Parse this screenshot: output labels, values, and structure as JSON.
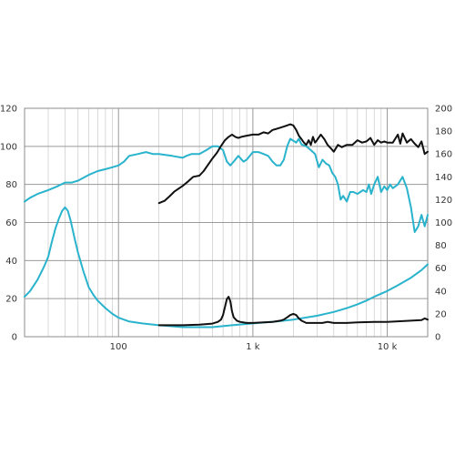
{
  "chart_data": {
    "type": "line",
    "x_scale": "log",
    "xlim": [
      20,
      20000
    ],
    "ylim_left": [
      0,
      120
    ],
    "ylim_right": [
      0,
      200
    ],
    "grid": true,
    "x_ticks": [
      {
        "value": 100,
        "label": "100"
      },
      {
        "value": 1000,
        "label": "1 k"
      },
      {
        "value": 10000,
        "label": "10 k"
      }
    ],
    "y_ticks_left": [
      {
        "value": 0,
        "label": "0"
      },
      {
        "value": 20,
        "label": "20"
      },
      {
        "value": 40,
        "label": "40"
      },
      {
        "value": 60,
        "label": "60"
      },
      {
        "value": 80,
        "label": "80"
      },
      {
        "value": 100,
        "label": "100"
      },
      {
        "value": 120,
        "label": "120"
      }
    ],
    "y_ticks_right": [
      {
        "value": 0,
        "label": "0"
      },
      {
        "value": 20,
        "label": "20"
      },
      {
        "value": 40,
        "label": "40"
      },
      {
        "value": 60,
        "label": "60"
      },
      {
        "value": 80,
        "label": "80"
      },
      {
        "value": 100,
        "label": "100"
      },
      {
        "value": 120,
        "label": "120"
      },
      {
        "value": 140,
        "label": "140"
      },
      {
        "value": 160,
        "label": "160"
      },
      {
        "value": 180,
        "label": "180"
      },
      {
        "value": 200,
        "label": "200"
      }
    ],
    "series": [
      {
        "color": "#29b3cc",
        "axis": "left",
        "points": [
          [
            20,
            71
          ],
          [
            22,
            73
          ],
          [
            25,
            75
          ],
          [
            30,
            77
          ],
          [
            35,
            79
          ],
          [
            40,
            81
          ],
          [
            45,
            81
          ],
          [
            50,
            82
          ],
          [
            60,
            85
          ],
          [
            70,
            87
          ],
          [
            80,
            88
          ],
          [
            90,
            89
          ],
          [
            100,
            90
          ],
          [
            110,
            92
          ],
          [
            120,
            95
          ],
          [
            140,
            96
          ],
          [
            160,
            97
          ],
          [
            180,
            96
          ],
          [
            200,
            96
          ],
          [
            250,
            95
          ],
          [
            300,
            94
          ],
          [
            320,
            95
          ],
          [
            350,
            96
          ],
          [
            400,
            96
          ],
          [
            450,
            98
          ],
          [
            500,
            100
          ],
          [
            550,
            100
          ],
          [
            600,
            98
          ],
          [
            640,
            92
          ],
          [
            680,
            90
          ],
          [
            720,
            92
          ],
          [
            780,
            95
          ],
          [
            850,
            92
          ],
          [
            900,
            93
          ],
          [
            1000,
            97
          ],
          [
            1100,
            97
          ],
          [
            1200,
            96
          ],
          [
            1300,
            95
          ],
          [
            1400,
            92
          ],
          [
            1500,
            90
          ],
          [
            1600,
            90
          ],
          [
            1700,
            93
          ],
          [
            1800,
            100
          ],
          [
            1900,
            104
          ],
          [
            2000,
            103
          ],
          [
            2100,
            102
          ],
          [
            2200,
            104
          ],
          [
            2300,
            101
          ],
          [
            2500,
            100
          ],
          [
            2700,
            98
          ],
          [
            2900,
            96
          ],
          [
            3100,
            89
          ],
          [
            3300,
            93
          ],
          [
            3500,
            91
          ],
          [
            3700,
            90
          ],
          [
            3900,
            86
          ],
          [
            4100,
            84
          ],
          [
            4300,
            80
          ],
          [
            4500,
            72
          ],
          [
            4700,
            74
          ],
          [
            5000,
            71
          ],
          [
            5300,
            76
          ],
          [
            5600,
            76
          ],
          [
            6000,
            75
          ],
          [
            6300,
            76
          ],
          [
            6600,
            77
          ],
          [
            7000,
            76
          ],
          [
            7300,
            80
          ],
          [
            7600,
            75
          ],
          [
            8000,
            80
          ],
          [
            8500,
            84
          ],
          [
            9000,
            76
          ],
          [
            9500,
            79
          ],
          [
            10000,
            77
          ],
          [
            10500,
            80
          ],
          [
            11000,
            78
          ],
          [
            12000,
            80
          ],
          [
            13000,
            84
          ],
          [
            14000,
            78
          ],
          [
            15000,
            68
          ],
          [
            16000,
            55
          ],
          [
            17000,
            58
          ],
          [
            18000,
            64
          ],
          [
            19000,
            58
          ],
          [
            20000,
            64
          ]
        ]
      },
      {
        "color": "#111111",
        "axis": "right",
        "points": [
          [
            200,
            117
          ],
          [
            220,
            119
          ],
          [
            240,
            123
          ],
          [
            260,
            127
          ],
          [
            300,
            132
          ],
          [
            330,
            136
          ],
          [
            360,
            140
          ],
          [
            400,
            141
          ],
          [
            430,
            145
          ],
          [
            460,
            150
          ],
          [
            500,
            156
          ],
          [
            540,
            161
          ],
          [
            580,
            167
          ],
          [
            620,
            172
          ],
          [
            660,
            175
          ],
          [
            700,
            177
          ],
          [
            740,
            175
          ],
          [
            780,
            174
          ],
          [
            820,
            175
          ],
          [
            900,
            176
          ],
          [
            1000,
            177
          ],
          [
            1100,
            177
          ],
          [
            1200,
            179
          ],
          [
            1300,
            178
          ],
          [
            1400,
            181
          ],
          [
            1500,
            182
          ],
          [
            1600,
            183
          ],
          [
            1700,
            184
          ],
          [
            1800,
            185
          ],
          [
            1900,
            186
          ],
          [
            2000,
            185
          ],
          [
            2100,
            181
          ],
          [
            2200,
            176
          ],
          [
            2300,
            173
          ],
          [
            2400,
            170
          ],
          [
            2500,
            168
          ],
          [
            2600,
            172
          ],
          [
            2700,
            168
          ],
          [
            2800,
            175
          ],
          [
            2900,
            170
          ],
          [
            3000,
            172
          ],
          [
            3200,
            177
          ],
          [
            3400,
            173
          ],
          [
            3600,
            168
          ],
          [
            3800,
            165
          ],
          [
            4000,
            162
          ],
          [
            4300,
            168
          ],
          [
            4600,
            166
          ],
          [
            5000,
            168
          ],
          [
            5500,
            168
          ],
          [
            6000,
            172
          ],
          [
            6500,
            170
          ],
          [
            7000,
            171
          ],
          [
            7500,
            174
          ],
          [
            8000,
            168
          ],
          [
            8500,
            172
          ],
          [
            9000,
            170
          ],
          [
            9500,
            171
          ],
          [
            10000,
            170
          ],
          [
            11000,
            170
          ],
          [
            12000,
            177
          ],
          [
            12500,
            169
          ],
          [
            13000,
            178
          ],
          [
            14000,
            170
          ],
          [
            15000,
            173
          ],
          [
            16000,
            169
          ],
          [
            17000,
            166
          ],
          [
            18000,
            171
          ],
          [
            19000,
            160
          ],
          [
            20000,
            162
          ]
        ]
      },
      {
        "color": "#29b3cc",
        "axis": "left",
        "points": [
          [
            20,
            21
          ],
          [
            22,
            24
          ],
          [
            25,
            30
          ],
          [
            28,
            37
          ],
          [
            30,
            42
          ],
          [
            32,
            50
          ],
          [
            34,
            57
          ],
          [
            36,
            62
          ],
          [
            38,
            66
          ],
          [
            40,
            68
          ],
          [
            42,
            66
          ],
          [
            44,
            61
          ],
          [
            47,
            52
          ],
          [
            50,
            44
          ],
          [
            55,
            34
          ],
          [
            60,
            26
          ],
          [
            65,
            22
          ],
          [
            70,
            19
          ],
          [
            80,
            15
          ],
          [
            90,
            12
          ],
          [
            100,
            10
          ],
          [
            120,
            8
          ],
          [
            150,
            7
          ],
          [
            200,
            6
          ],
          [
            300,
            5
          ],
          [
            400,
            5
          ],
          [
            500,
            5
          ],
          [
            700,
            6
          ],
          [
            1000,
            7
          ],
          [
            1500,
            8
          ],
          [
            2000,
            9
          ],
          [
            3000,
            11
          ],
          [
            4000,
            13
          ],
          [
            5000,
            15
          ],
          [
            6000,
            17
          ],
          [
            7000,
            19
          ],
          [
            8000,
            21
          ],
          [
            10000,
            24
          ],
          [
            12000,
            27
          ],
          [
            15000,
            31
          ],
          [
            18000,
            35
          ],
          [
            20000,
            38
          ]
        ]
      },
      {
        "color": "#111111",
        "axis": "right",
        "points": [
          [
            200,
            10
          ],
          [
            300,
            10
          ],
          [
            400,
            10.5
          ],
          [
            500,
            11.5
          ],
          [
            550,
            13
          ],
          [
            580,
            15
          ],
          [
            600,
            19
          ],
          [
            620,
            26
          ],
          [
            640,
            33
          ],
          [
            660,
            35
          ],
          [
            680,
            31
          ],
          [
            700,
            22
          ],
          [
            720,
            17
          ],
          [
            760,
            14
          ],
          [
            800,
            13
          ],
          [
            900,
            12
          ],
          [
            1000,
            12
          ],
          [
            1200,
            12.5
          ],
          [
            1400,
            13
          ],
          [
            1600,
            14
          ],
          [
            1700,
            15
          ],
          [
            1800,
            17
          ],
          [
            1900,
            19
          ],
          [
            2000,
            20
          ],
          [
            2100,
            19
          ],
          [
            2200,
            16
          ],
          [
            2300,
            14
          ],
          [
            2500,
            12
          ],
          [
            3000,
            12
          ],
          [
            3300,
            12
          ],
          [
            3600,
            13
          ],
          [
            4000,
            12
          ],
          [
            5000,
            12
          ],
          [
            6000,
            12.5
          ],
          [
            8000,
            13
          ],
          [
            10000,
            13
          ],
          [
            12000,
            13.5
          ],
          [
            15000,
            14
          ],
          [
            18000,
            14.5
          ],
          [
            19000,
            16
          ],
          [
            20000,
            15
          ]
        ]
      }
    ]
  }
}
